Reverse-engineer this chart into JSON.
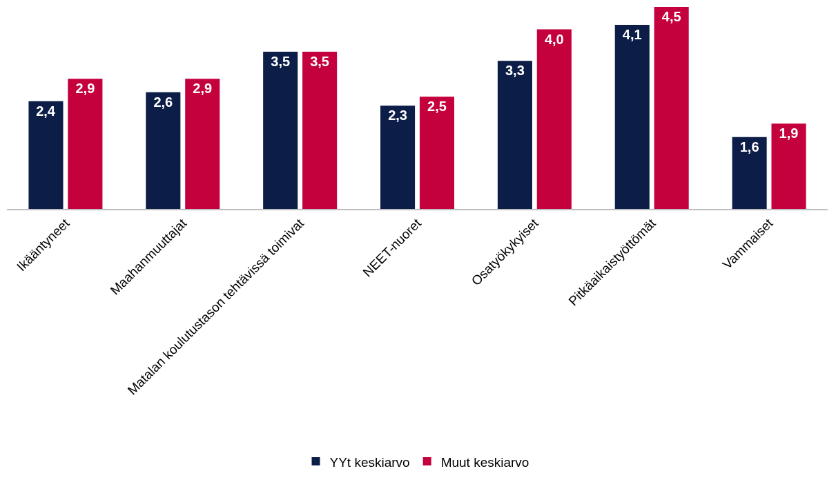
{
  "chart_data": {
    "type": "bar",
    "categories": [
      "Ikääntyneet",
      "Maahanmuuttajat",
      "Matalan koulutustason tehtävissä toimivat",
      "NEET-nuoret",
      "Osatyökykyiset",
      "Pitkäaikaistyöttömät",
      "Vammaiset"
    ],
    "series": [
      {
        "name": "YYt keskiarvo",
        "color": "#0c1e47",
        "values": [
          2.4,
          2.6,
          3.5,
          2.3,
          3.3,
          4.1,
          1.6
        ],
        "value_labels": [
          "2,4",
          "2,6",
          "3,5",
          "2,3",
          "3,3",
          "4,1",
          "1,6"
        ]
      },
      {
        "name": "Muut keskiarvo",
        "color": "#c4003d",
        "values": [
          2.9,
          2.9,
          3.5,
          2.5,
          4.0,
          4.5,
          1.9
        ],
        "value_labels": [
          "2,9",
          "2,9",
          "3,5",
          "2,5",
          "4,0",
          "4,5",
          "1,9"
        ]
      }
    ],
    "ylim": [
      0,
      4.5
    ],
    "tick_labels": "x",
    "legend": "bottom"
  }
}
